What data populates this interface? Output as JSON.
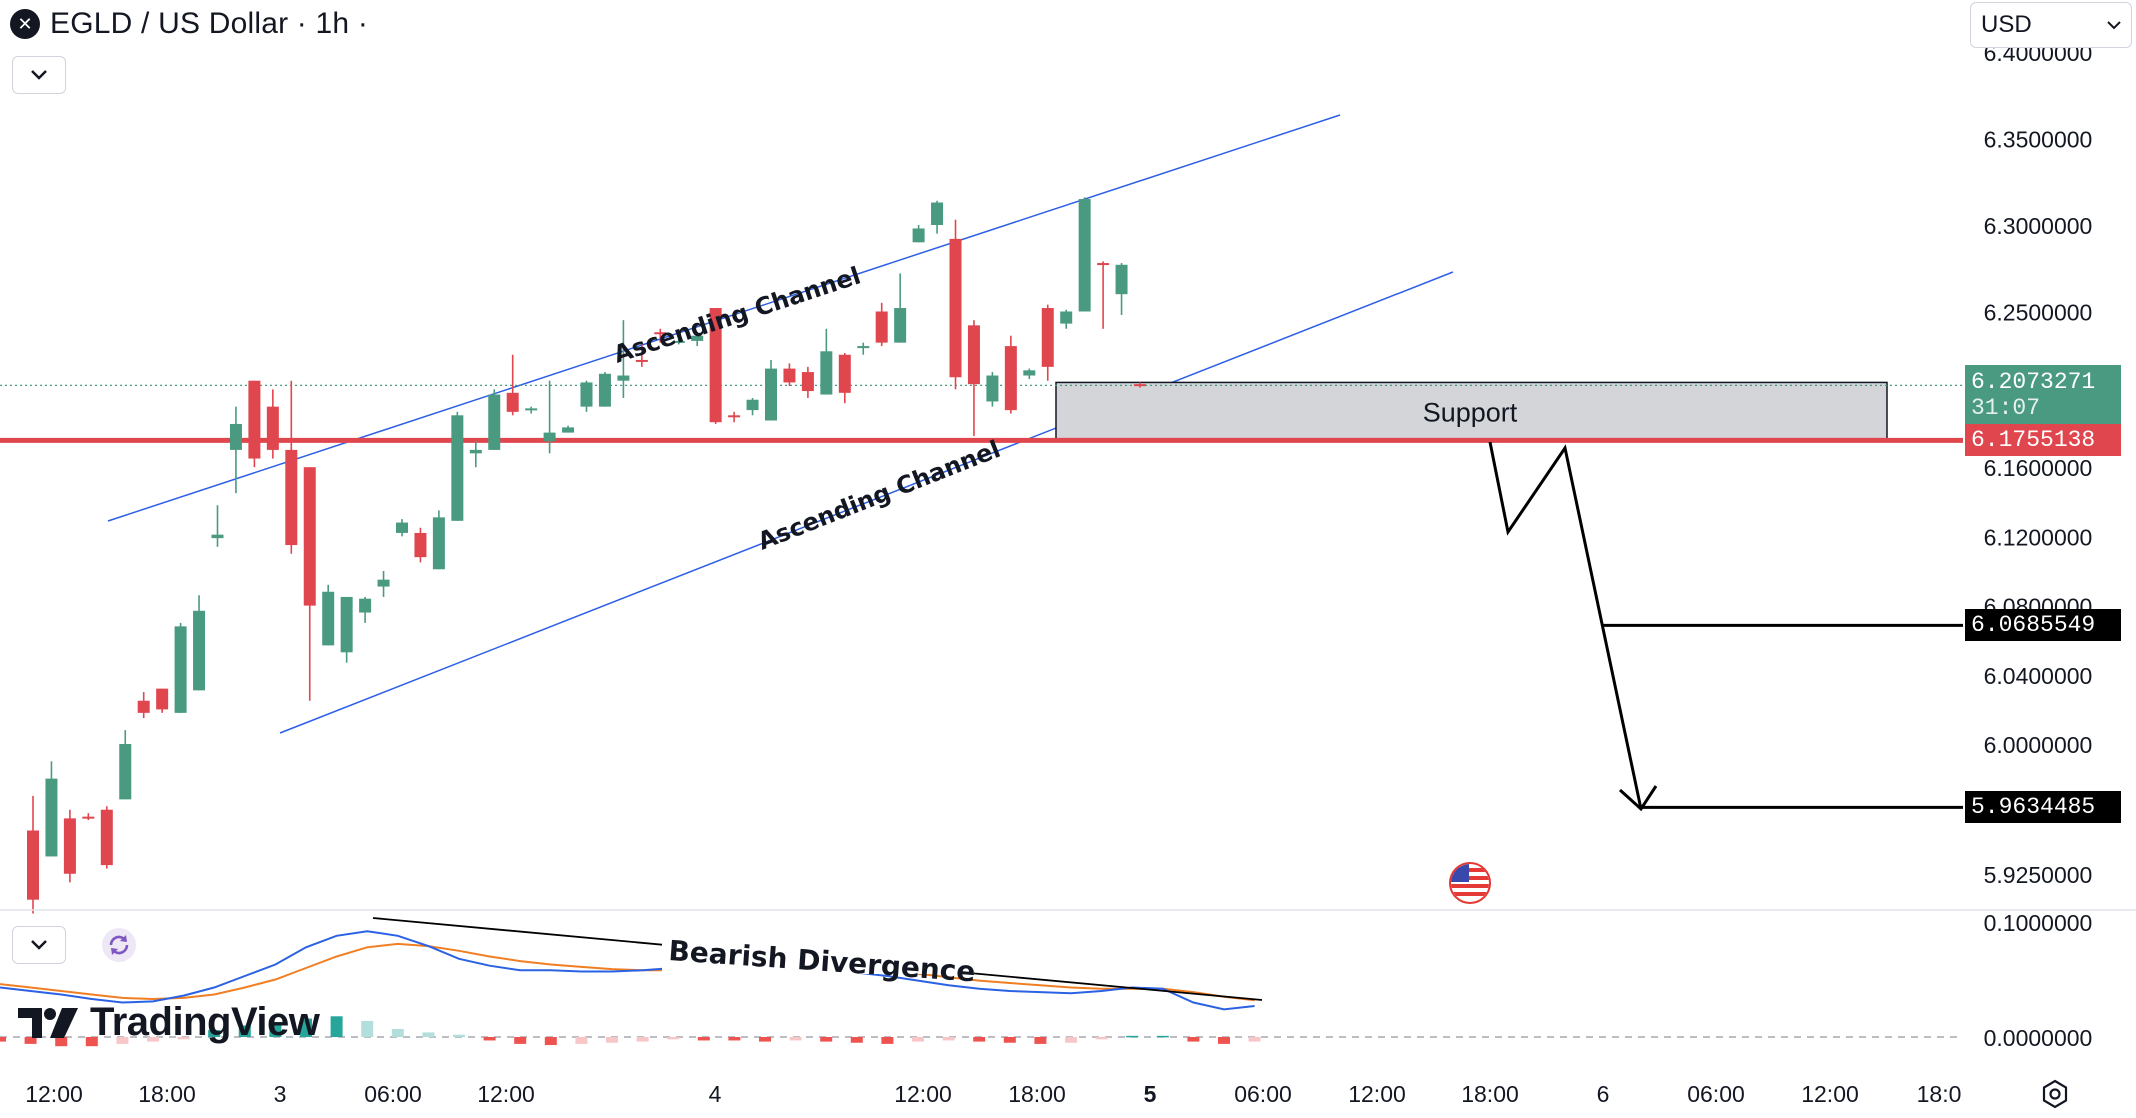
{
  "header": {
    "title": "EGLD / US Dollar · 1h ·",
    "logo_glyph": "✕",
    "currency": "USD"
  },
  "brand": {
    "name": "TradingView"
  },
  "colors": {
    "bull": "#4a9a82",
    "bear": "#e0464e",
    "channel": "#2c5fe6",
    "support_line": "#e0464e",
    "macd": "#2b62e3",
    "signal": "#f07f24",
    "hist_red": "#ef5350",
    "hist_red_light": "#f7c6c7",
    "hist_green": "#26a69a",
    "hist_green_light": "#b2dfdb"
  },
  "price_axis": {
    "ticks": [
      "6.4000000",
      "6.3500000",
      "6.3000000",
      "6.2500000",
      "6.1600000",
      "6.1200000",
      "6.0800000",
      "6.0400000",
      "6.0000000",
      "5.9250000"
    ],
    "tick_values": [
      6.4,
      6.35,
      6.3,
      6.25,
      6.16,
      6.12,
      6.08,
      6.04,
      6.0,
      5.925
    ]
  },
  "macd_axis": {
    "ticks": [
      "0.1000000",
      "0.0000000"
    ],
    "tick_values": [
      0.1,
      0.0
    ]
  },
  "time_axis": {
    "labels": [
      "12:00",
      "18:00",
      "3",
      "06:00",
      "12:00",
      "4",
      "12:00",
      "18:00",
      "5",
      "06:00",
      "12:00",
      "18:00",
      "6",
      "06:00",
      "12:00",
      "18:0"
    ],
    "bold_index": 8
  },
  "price_labels": {
    "current": {
      "value": "6.2073271",
      "countdown": "31:07",
      "price": 6.2073
    },
    "support": {
      "value": "6.1755138",
      "price": 6.1755
    },
    "target1": {
      "value": "6.0685549",
      "price": 6.0686
    },
    "target2": {
      "value": "5.9634485",
      "price": 5.9634
    }
  },
  "annotations": {
    "channel_upper": "Ascending Channel",
    "channel_lower": "Ascending Channel",
    "support_zone": "Support",
    "divergence": "Bearish Divergence",
    "support_top": 6.209,
    "support_bottom": 6.1755
  },
  "chart_data": {
    "type": "candlestick",
    "symbol": "EGLD / US Dollar",
    "interval": "1h",
    "ylim": [
      5.905,
      6.415
    ],
    "candles": [
      {
        "o": 5.95,
        "h": 5.97,
        "l": 5.902,
        "c": 5.91
      },
      {
        "o": 5.935,
        "h": 5.99,
        "l": 5.935,
        "c": 5.98
      },
      {
        "o": 5.957,
        "h": 5.962,
        "l": 5.92,
        "c": 5.925
      },
      {
        "o": 5.958,
        "h": 5.96,
        "l": 5.956,
        "c": 5.957
      },
      {
        "o": 5.962,
        "h": 5.964,
        "l": 5.928,
        "c": 5.93
      },
      {
        "o": 5.968,
        "h": 6.008,
        "l": 5.968,
        "c": 6.0
      },
      {
        "o": 6.025,
        "h": 6.03,
        "l": 6.015,
        "c": 6.018
      },
      {
        "o": 6.032,
        "h": 6.032,
        "l": 6.018,
        "c": 6.02
      },
      {
        "o": 6.018,
        "h": 6.07,
        "l": 6.018,
        "c": 6.068
      },
      {
        "o": 6.031,
        "h": 6.086,
        "l": 6.031,
        "c": 6.077
      },
      {
        "o": 6.119,
        "h": 6.138,
        "l": 6.114,
        "c": 6.121
      },
      {
        "o": 6.17,
        "h": 6.195,
        "l": 6.145,
        "c": 6.185
      },
      {
        "o": 6.21,
        "h": 6.21,
        "l": 6.16,
        "c": 6.165
      },
      {
        "o": 6.195,
        "h": 6.205,
        "l": 6.165,
        "c": 6.17
      },
      {
        "o": 6.17,
        "h": 6.21,
        "l": 6.11,
        "c": 6.115
      },
      {
        "o": 6.16,
        "h": 6.16,
        "l": 6.025,
        "c": 6.08
      },
      {
        "o": 6.057,
        "h": 6.092,
        "l": 6.057,
        "c": 6.088
      },
      {
        "o": 6.053,
        "h": 6.085,
        "l": 6.047,
        "c": 6.085
      },
      {
        "o": 6.076,
        "h": 6.085,
        "l": 6.07,
        "c": 6.084
      },
      {
        "o": 6.091,
        "h": 6.1,
        "l": 6.085,
        "c": 6.095
      },
      {
        "o": 6.122,
        "h": 6.13,
        "l": 6.12,
        "c": 6.128
      },
      {
        "o": 6.122,
        "h": 6.125,
        "l": 6.105,
        "c": 6.108
      },
      {
        "o": 6.101,
        "h": 6.135,
        "l": 6.101,
        "c": 6.131
      },
      {
        "o": 6.129,
        "h": 6.192,
        "l": 6.129,
        "c": 6.19
      },
      {
        "o": 6.168,
        "h": 6.175,
        "l": 6.16,
        "c": 6.17
      },
      {
        "o": 6.17,
        "h": 6.205,
        "l": 6.17,
        "c": 6.202
      },
      {
        "o": 6.203,
        "h": 6.225,
        "l": 6.19,
        "c": 6.192
      },
      {
        "o": 6.193,
        "h": 6.195,
        "l": 6.191,
        "c": 6.194
      },
      {
        "o": 6.175,
        "h": 6.21,
        "l": 6.168,
        "c": 6.18
      },
      {
        "o": 6.18,
        "h": 6.184,
        "l": 6.18,
        "c": 6.183
      },
      {
        "o": 6.195,
        "h": 6.21,
        "l": 6.192,
        "c": 6.209
      },
      {
        "o": 6.195,
        "h": 6.215,
        "l": 6.195,
        "c": 6.214
      },
      {
        "o": 6.21,
        "h": 6.245,
        "l": 6.2,
        "c": 6.213
      },
      {
        "o": 6.222,
        "h": 6.232,
        "l": 6.218,
        "c": 6.221
      },
      {
        "o": 6.238,
        "h": 6.24,
        "l": 6.232,
        "c": 6.237
      },
      {
        "o": 6.232,
        "h": 6.234,
        "l": 6.231,
        "c": 6.233
      },
      {
        "o": 6.233,
        "h": 6.238,
        "l": 6.23,
        "c": 6.236
      },
      {
        "o": 6.252,
        "h": 6.252,
        "l": 6.185,
        "c": 6.186
      },
      {
        "o": 6.19,
        "h": 6.192,
        "l": 6.186,
        "c": 6.189
      },
      {
        "o": 6.193,
        "h": 6.2,
        "l": 6.19,
        "c": 6.199
      },
      {
        "o": 6.187,
        "h": 6.222,
        "l": 6.187,
        "c": 6.217
      },
      {
        "o": 6.217,
        "h": 6.22,
        "l": 6.207,
        "c": 6.209
      },
      {
        "o": 6.215,
        "h": 6.218,
        "l": 6.2,
        "c": 6.204
      },
      {
        "o": 6.202,
        "h": 6.24,
        "l": 6.202,
        "c": 6.227
      },
      {
        "o": 6.225,
        "h": 6.226,
        "l": 6.197,
        "c": 6.203
      },
      {
        "o": 6.23,
        "h": 6.232,
        "l": 6.225,
        "c": 6.23
      },
      {
        "o": 6.25,
        "h": 6.255,
        "l": 6.23,
        "c": 6.232
      },
      {
        "o": 6.232,
        "h": 6.272,
        "l": 6.232,
        "c": 6.252
      },
      {
        "o": 6.29,
        "h": 6.3,
        "l": 6.29,
        "c": 6.298
      },
      {
        "o": 6.3,
        "h": 6.314,
        "l": 6.295,
        "c": 6.313
      },
      {
        "o": 6.292,
        "h": 6.303,
        "l": 6.205,
        "c": 6.212
      },
      {
        "o": 6.242,
        "h": 6.245,
        "l": 6.178,
        "c": 6.208
      },
      {
        "o": 6.198,
        "h": 6.215,
        "l": 6.195,
        "c": 6.213
      },
      {
        "o": 6.23,
        "h": 6.236,
        "l": 6.191,
        "c": 6.193
      },
      {
        "o": 6.213,
        "h": 6.217,
        "l": 6.211,
        "c": 6.216
      },
      {
        "o": 6.252,
        "h": 6.254,
        "l": 6.21,
        "c": 6.218
      },
      {
        "o": 6.243,
        "h": 6.251,
        "l": 6.24,
        "c": 6.25
      },
      {
        "o": 6.25,
        "h": 6.316,
        "l": 6.25,
        "c": 6.315
      },
      {
        "o": 6.278,
        "h": 6.279,
        "l": 6.24,
        "c": 6.277
      },
      {
        "o": 6.26,
        "h": 6.278,
        "l": 6.248,
        "c": 6.277
      },
      {
        "o": 6.208,
        "h": 6.209,
        "l": 6.206,
        "c": 6.2073
      }
    ],
    "macd": [
      0.043,
      0.04,
      0.037,
      0.033,
      0.03,
      0.031,
      0.036,
      0.043,
      0.053,
      0.063,
      0.078,
      0.088,
      0.092,
      0.088,
      0.079,
      0.068,
      0.062,
      0.058,
      0.058,
      0.057,
      0.057,
      0.058,
      0.06,
      0.064,
      0.064,
      0.061,
      0.058,
      0.058,
      0.056,
      0.053,
      0.049,
      0.045,
      0.042,
      0.04,
      0.039,
      0.038,
      0.04,
      0.043,
      0.042,
      0.03,
      0.024,
      0.027
    ],
    "signal": [
      0.046,
      0.043,
      0.04,
      0.037,
      0.034,
      0.033,
      0.034,
      0.037,
      0.043,
      0.05,
      0.06,
      0.07,
      0.078,
      0.081,
      0.079,
      0.075,
      0.07,
      0.066,
      0.063,
      0.061,
      0.059,
      0.058,
      0.058,
      0.059,
      0.06,
      0.06,
      0.06,
      0.059,
      0.058,
      0.057,
      0.055,
      0.052,
      0.049,
      0.047,
      0.045,
      0.043,
      0.042,
      0.042,
      0.042,
      0.039,
      0.035,
      0.032
    ],
    "hist": [
      -0.004,
      -0.006,
      -0.008,
      -0.008,
      -0.006,
      -0.004,
      -0.002,
      0.006,
      0.01,
      0.013,
      0.016,
      0.018,
      0.014,
      0.007,
      0.004,
      0.002,
      -0.003,
      -0.006,
      -0.007,
      -0.006,
      -0.005,
      -0.004,
      -0.002,
      -0.003,
      -0.003,
      -0.004,
      -0.003,
      -0.004,
      -0.005,
      -0.006,
      -0.004,
      -0.003,
      -0.004,
      -0.005,
      -0.006,
      -0.005,
      -0.002,
      0.001,
      0.001,
      -0.004,
      -0.006,
      -0.004
    ],
    "macd_ylim": [
      -0.02,
      0.105
    ]
  }
}
